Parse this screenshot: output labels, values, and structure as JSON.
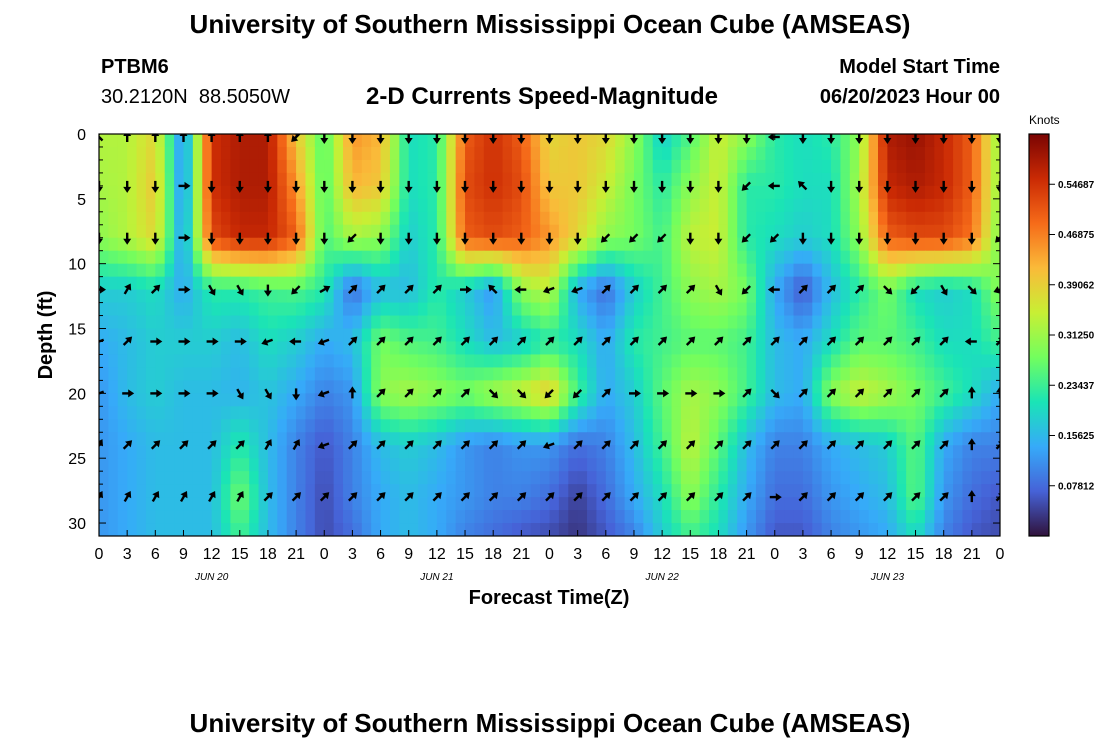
{
  "header": {
    "title": "University of Southern Mississippi Ocean Cube (AMSEAS)",
    "station_id": "PTBM6",
    "coordinates": "30.2120N  88.5050W",
    "subtitle": "2-D Currents Speed-Magnitude",
    "model_start_label": "Model Start Time",
    "model_start_value": "06/20/2023 Hour 00"
  },
  "footer": {
    "title": "University of Southern Mississippi Ocean Cube (AMSEAS)"
  },
  "colors": {
    "colormap": [
      "#30123b",
      "#4662d7",
      "#36aaf9",
      "#1ae4b6",
      "#72fe5e",
      "#c8ef34",
      "#faba39",
      "#f66b19",
      "#ca2a04",
      "#7a0403"
    ],
    "arrow": "#000000",
    "axis": "#000000"
  },
  "chart_data": {
    "type": "heatmap",
    "title": "2-D Currents Speed-Magnitude",
    "xlabel": "Forecast Time(Z)",
    "ylabel": "Depth (ft)",
    "x_hours": [
      0,
      3,
      6,
      9,
      12,
      15,
      18,
      21,
      24,
      27,
      30,
      33,
      36,
      39,
      42,
      45,
      48,
      51,
      54,
      57,
      60,
      63,
      66,
      69,
      72,
      75,
      78,
      81,
      84,
      87,
      90,
      93,
      96
    ],
    "x_tick_labels": [
      "0",
      "3",
      "6",
      "9",
      "12",
      "15",
      "18",
      "21",
      "0",
      "3",
      "6",
      "9",
      "12",
      "15",
      "18",
      "21",
      "0",
      "3",
      "6",
      "9",
      "12",
      "15",
      "18",
      "21",
      "0",
      "3",
      "6",
      "9",
      "12",
      "15",
      "18",
      "21",
      "0"
    ],
    "day_labels": [
      {
        "hour": 12,
        "label": "JUN 20"
      },
      {
        "hour": 36,
        "label": "JUN 21"
      },
      {
        "hour": 60,
        "label": "JUN 22"
      },
      {
        "hour": 84,
        "label": "JUN 23"
      }
    ],
    "xlim": [
      0,
      96
    ],
    "y_ticks": [
      0,
      5,
      10,
      15,
      20,
      25,
      30
    ],
    "ylim": [
      0,
      31
    ],
    "y_inverted": true,
    "colorbar": {
      "title": "Knots",
      "range": [
        0.0,
        0.625
      ],
      "ticks": [
        0.078125,
        0.15625,
        0.234375,
        0.3125,
        0.390625,
        0.46875,
        0.546875
      ],
      "tick_labels": [
        "0.07812",
        "0.15625",
        "0.23437",
        "0.31250",
        "0.39062",
        "0.46875",
        "0.54687"
      ]
    },
    "speed_grid": {
      "hours": [
        0,
        3,
        6,
        9,
        12,
        15,
        18,
        21,
        24,
        27,
        30,
        33,
        36,
        39,
        42,
        45,
        48,
        51,
        54,
        57,
        60,
        63,
        66,
        69,
        72,
        75,
        78,
        81,
        84,
        87,
        90,
        93,
        96
      ],
      "depths": [
        0,
        4,
        8,
        12,
        16,
        20,
        24,
        28,
        31
      ],
      "values": [
        [
          0.33,
          0.33,
          0.38,
          0.1,
          0.55,
          0.58,
          0.58,
          0.4,
          0.25,
          0.45,
          0.42,
          0.2,
          0.22,
          0.5,
          0.55,
          0.5,
          0.38,
          0.4,
          0.38,
          0.3,
          0.18,
          0.25,
          0.35,
          0.3,
          0.22,
          0.2,
          0.22,
          0.3,
          0.58,
          0.6,
          0.56,
          0.5,
          0.3
        ],
        [
          0.32,
          0.33,
          0.4,
          0.1,
          0.55,
          0.58,
          0.58,
          0.45,
          0.25,
          0.42,
          0.4,
          0.2,
          0.22,
          0.52,
          0.55,
          0.52,
          0.4,
          0.4,
          0.35,
          0.28,
          0.22,
          0.3,
          0.35,
          0.22,
          0.22,
          0.2,
          0.2,
          0.32,
          0.56,
          0.58,
          0.56,
          0.5,
          0.3
        ],
        [
          0.3,
          0.33,
          0.38,
          0.12,
          0.52,
          0.56,
          0.56,
          0.5,
          0.25,
          0.32,
          0.3,
          0.18,
          0.22,
          0.5,
          0.52,
          0.5,
          0.45,
          0.38,
          0.3,
          0.28,
          0.24,
          0.34,
          0.35,
          0.22,
          0.2,
          0.18,
          0.2,
          0.3,
          0.5,
          0.52,
          0.52,
          0.48,
          0.28
        ],
        [
          0.18,
          0.18,
          0.2,
          0.14,
          0.22,
          0.22,
          0.24,
          0.25,
          0.22,
          0.08,
          0.16,
          0.16,
          0.22,
          0.18,
          0.12,
          0.3,
          0.34,
          0.14,
          0.08,
          0.18,
          0.24,
          0.3,
          0.32,
          0.28,
          0.14,
          0.06,
          0.16,
          0.22,
          0.28,
          0.2,
          0.18,
          0.2,
          0.3
        ],
        [
          0.14,
          0.16,
          0.18,
          0.18,
          0.18,
          0.16,
          0.2,
          0.18,
          0.14,
          0.16,
          0.28,
          0.25,
          0.24,
          0.2,
          0.16,
          0.18,
          0.22,
          0.2,
          0.14,
          0.22,
          0.24,
          0.26,
          0.26,
          0.24,
          0.16,
          0.14,
          0.2,
          0.26,
          0.26,
          0.24,
          0.2,
          0.2,
          0.24
        ],
        [
          0.12,
          0.16,
          0.18,
          0.16,
          0.16,
          0.15,
          0.17,
          0.14,
          0.1,
          0.12,
          0.3,
          0.32,
          0.3,
          0.28,
          0.32,
          0.35,
          0.4,
          0.24,
          0.14,
          0.18,
          0.26,
          0.32,
          0.3,
          0.24,
          0.16,
          0.14,
          0.3,
          0.35,
          0.32,
          0.28,
          0.24,
          0.2,
          0.14
        ],
        [
          0.12,
          0.14,
          0.16,
          0.16,
          0.16,
          0.22,
          0.16,
          0.1,
          0.06,
          0.1,
          0.16,
          0.18,
          0.16,
          0.12,
          0.1,
          0.12,
          0.12,
          0.08,
          0.1,
          0.16,
          0.24,
          0.34,
          0.26,
          0.16,
          0.1,
          0.1,
          0.14,
          0.16,
          0.18,
          0.26,
          0.14,
          0.1,
          0.1
        ],
        [
          0.12,
          0.14,
          0.16,
          0.16,
          0.16,
          0.28,
          0.16,
          0.1,
          0.05,
          0.1,
          0.14,
          0.16,
          0.14,
          0.12,
          0.1,
          0.1,
          0.08,
          0.04,
          0.08,
          0.14,
          0.2,
          0.3,
          0.22,
          0.14,
          0.08,
          0.08,
          0.12,
          0.14,
          0.16,
          0.26,
          0.12,
          0.08,
          0.06
        ],
        [
          0.12,
          0.14,
          0.16,
          0.16,
          0.16,
          0.24,
          0.16,
          0.1,
          0.05,
          0.08,
          0.14,
          0.16,
          0.14,
          0.1,
          0.08,
          0.06,
          0.05,
          0.03,
          0.06,
          0.1,
          0.18,
          0.24,
          0.2,
          0.12,
          0.06,
          0.06,
          0.1,
          0.12,
          0.14,
          0.2,
          0.1,
          0.06,
          0.05
        ]
      ]
    },
    "vector_depths": [
      0,
      4,
      8,
      12,
      16,
      20,
      24,
      28
    ],
    "vector_directions_deg": [
      [
        135,
        90,
        90,
        90,
        90,
        90,
        90,
        225,
        270,
        270,
        270,
        270,
        270,
        270,
        270,
        270,
        270,
        270,
        270,
        270,
        270,
        270,
        270,
        270,
        180,
        270,
        270,
        270,
        270,
        270,
        270,
        270,
        270
      ],
      [
        270,
        270,
        270,
        0,
        270,
        270,
        270,
        270,
        270,
        270,
        270,
        270,
        270,
        270,
        270,
        270,
        270,
        270,
        270,
        270,
        270,
        270,
        270,
        225,
        180,
        135,
        270,
        270,
        270,
        270,
        270,
        270,
        270
      ],
      [
        270,
        270,
        270,
        0,
        270,
        270,
        270,
        270,
        270,
        225,
        270,
        270,
        270,
        270,
        270,
        270,
        270,
        270,
        225,
        225,
        225,
        270,
        270,
        225,
        225,
        270,
        270,
        270,
        270,
        270,
        270,
        270,
        225
      ],
      [
        0,
        60,
        45,
        0,
        300,
        300,
        270,
        225,
        30,
        45,
        45,
        45,
        45,
        0,
        135,
        180,
        200,
        200,
        45,
        45,
        45,
        45,
        300,
        225,
        180,
        45,
        45,
        45,
        315,
        225,
        300,
        315,
        200
      ],
      [
        200,
        45,
        0,
        0,
        0,
        0,
        200,
        180,
        200,
        45,
        45,
        45,
        45,
        45,
        45,
        45,
        45,
        45,
        45,
        45,
        45,
        45,
        45,
        45,
        45,
        45,
        45,
        45,
        45,
        45,
        45,
        180,
        45
      ],
      [
        200,
        0,
        0,
        0,
        0,
        300,
        300,
        270,
        200,
        90,
        45,
        45,
        45,
        45,
        315,
        315,
        225,
        225,
        45,
        0,
        0,
        0,
        0,
        45,
        315,
        45,
        45,
        45,
        45,
        45,
        45,
        90,
        90
      ],
      [
        60,
        45,
        45,
        45,
        45,
        45,
        60,
        60,
        200,
        45,
        45,
        45,
        45,
        45,
        45,
        45,
        200,
        45,
        45,
        45,
        45,
        45,
        45,
        45,
        45,
        45,
        45,
        45,
        45,
        45,
        45,
        90,
        45
      ],
      [
        60,
        60,
        60,
        60,
        60,
        60,
        45,
        45,
        45,
        45,
        45,
        45,
        45,
        45,
        45,
        45,
        45,
        45,
        45,
        45,
        45,
        45,
        45,
        45,
        0,
        45,
        45,
        45,
        45,
        45,
        45,
        90,
        45
      ]
    ]
  }
}
